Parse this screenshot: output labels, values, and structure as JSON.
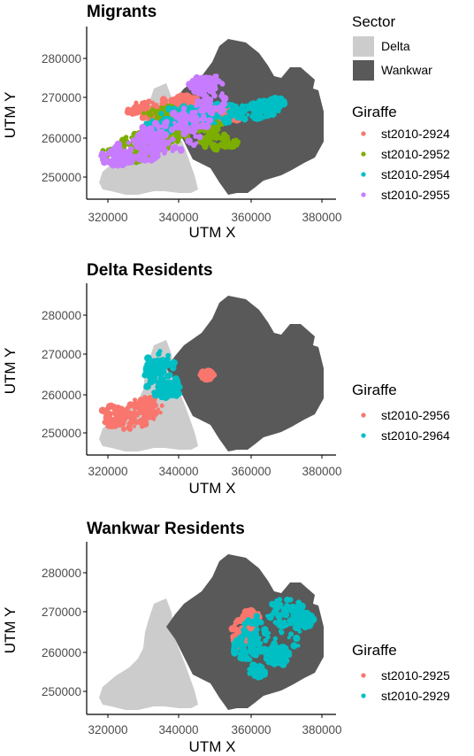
{
  "sector_legend": {
    "title": "Sector",
    "items": [
      {
        "label": "Delta",
        "color": "#cccccc"
      },
      {
        "label": "Wankwar",
        "color": "#595959"
      }
    ]
  },
  "axes": {
    "xlabel": "UTM X",
    "ylabel": "UTM Y",
    "x_ticks": [
      "320000",
      "340000",
      "360000",
      "380000"
    ],
    "y_ticks": [
      "250000",
      "260000",
      "270000",
      "280000"
    ]
  },
  "panels": [
    {
      "title": "Migrants",
      "legend_title": "Giraffe",
      "giraffes": [
        {
          "id": "st2010-2924",
          "color": "#f8766d"
        },
        {
          "id": "st2010-2952",
          "color": "#7cae00"
        },
        {
          "id": "st2010-2954",
          "color": "#00bfc4"
        },
        {
          "id": "st2010-2955",
          "color": "#c77cff"
        }
      ]
    },
    {
      "title": "Delta Residents",
      "legend_title": "Giraffe",
      "giraffes": [
        {
          "id": "st2010-2956",
          "color": "#f8766d"
        },
        {
          "id": "st2010-2964",
          "color": "#00bfc4"
        }
      ]
    },
    {
      "title": "Wankwar Residents",
      "legend_title": "Giraffe",
      "giraffes": [
        {
          "id": "st2010-2925",
          "color": "#f8766d"
        },
        {
          "id": "st2010-2929",
          "color": "#00bfc4"
        }
      ]
    }
  ]
}
